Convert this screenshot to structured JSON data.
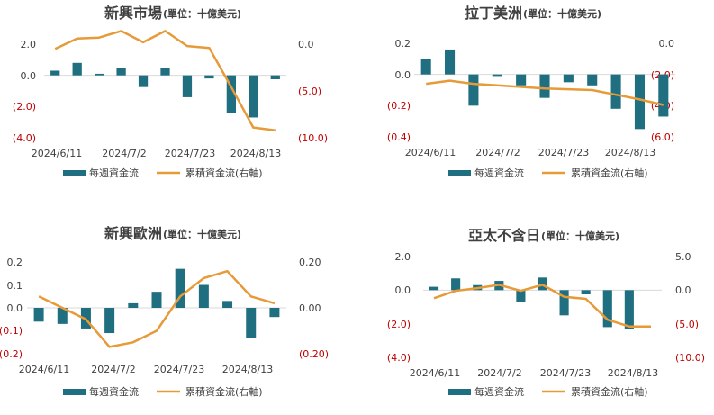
{
  "colors": {
    "bar": "#1f6f80",
    "line": "#e69a38",
    "negative": "#c00000",
    "text": "#404040",
    "grid": "#d9d9d9"
  },
  "legend": {
    "bar_label": "每週資金流",
    "line_label": "累積資金流(右軸)"
  },
  "chart_data": [
    {
      "type": "bar",
      "title": "新興市場",
      "subtitle": "(單位：十億美元)",
      "x_tick_labels": [
        "2024/6/11",
        "2024/7/2",
        "2024/7/23",
        "2024/8/13"
      ],
      "left_axis": {
        "ylim": [
          -4,
          2
        ],
        "tick_labels": [
          "2.0",
          "0.0",
          "(2.0)",
          "(4.0)"
        ]
      },
      "right_axis": {
        "ylim": [
          -10,
          0
        ],
        "tick_labels": [
          "0.0",
          "(5.0)",
          "(10.0)"
        ]
      },
      "series": [
        {
          "name": "每週資金流",
          "type": "bar",
          "axis": "left",
          "values": [
            0.3,
            0.8,
            0.1,
            0.45,
            -0.75,
            0.5,
            -1.4,
            -0.2,
            -2.4,
            -2.7,
            -0.25
          ]
        },
        {
          "name": "累積資金流(右軸)",
          "type": "line",
          "axis": "right",
          "values": [
            -0.5,
            0.6,
            0.7,
            1.4,
            0.2,
            1.4,
            -0.2,
            -0.4,
            -4.6,
            -8.9,
            -9.2
          ]
        }
      ]
    },
    {
      "type": "bar",
      "title": "拉丁美洲",
      "subtitle": "(單位：十億美元)",
      "x_tick_labels": [
        "2024/6/11",
        "2024/7/2",
        "2024/7/23",
        "2024/8/13"
      ],
      "left_axis": {
        "ylim": [
          -0.4,
          0.2
        ],
        "tick_labels": [
          "0.2",
          "0.0",
          "(0.2)",
          "(0.4)"
        ]
      },
      "right_axis": {
        "ylim": [
          -6,
          0
        ],
        "tick_labels": [
          "0.0",
          "(2.0)",
          "(4.0)",
          "(6.0)"
        ]
      },
      "series": [
        {
          "name": "每週資金流",
          "type": "bar",
          "axis": "left",
          "values": [
            0.1,
            0.16,
            -0.2,
            -0.01,
            -0.07,
            -0.15,
            -0.05,
            -0.07,
            -0.22,
            -0.35,
            -0.27
          ]
        },
        {
          "name": "累積資金流(右軸)",
          "type": "line",
          "axis": "right",
          "values": [
            -2.6,
            -2.4,
            -2.6,
            -2.7,
            -2.8,
            -2.9,
            -2.95,
            -3.0,
            -3.3,
            -3.6,
            -3.95
          ]
        }
      ]
    },
    {
      "type": "bar",
      "title": "新興歐洲",
      "subtitle": "(單位：十億美元)",
      "x_tick_labels": [
        "2024/6/11",
        "2024/7/2",
        "2024/7/23",
        "2024/8/13"
      ],
      "left_axis": {
        "ylim": [
          -0.2,
          0.2
        ],
        "tick_labels": [
          "0.2",
          "0.1",
          "0.0",
          "(0.1)",
          "(0.2)"
        ]
      },
      "right_axis": {
        "ylim": [
          -0.2,
          0.2
        ],
        "tick_labels": [
          "0.20",
          "0.00",
          "(0.20)"
        ]
      },
      "series": [
        {
          "name": "每週資金流",
          "type": "bar",
          "axis": "left",
          "values": [
            -0.06,
            -0.07,
            -0.09,
            -0.11,
            0.02,
            0.07,
            0.17,
            0.1,
            0.03,
            -0.13,
            -0.04
          ]
        },
        {
          "name": "累積資金流(右軸)",
          "type": "line",
          "axis": "right",
          "values": [
            0.05,
            0.0,
            -0.05,
            -0.17,
            -0.15,
            -0.1,
            0.05,
            0.13,
            0.16,
            0.05,
            0.02
          ]
        }
      ]
    },
    {
      "type": "bar",
      "title": "亞太不含日",
      "subtitle": "(單位：十億美元)",
      "x_tick_labels": [
        "2024/6/11",
        "2024/7/2",
        "2024/7/23",
        "2024/8/13"
      ],
      "left_axis": {
        "ylim": [
          -4,
          2
        ],
        "tick_labels": [
          "2.0",
          "0.0",
          "(2.0)",
          "(4.0)"
        ]
      },
      "right_axis": {
        "ylim": [
          -10,
          5
        ],
        "tick_labels": [
          "5.0",
          "0.0",
          "(5.0)",
          "(10.0)"
        ]
      },
      "series": [
        {
          "name": "每週資金流",
          "type": "bar",
          "axis": "left",
          "values": [
            0.2,
            0.7,
            0.3,
            0.55,
            -0.7,
            0.75,
            -1.5,
            -0.25,
            -2.2,
            -2.3,
            0.0
          ]
        },
        {
          "name": "累積資金流(右軸)",
          "type": "line",
          "axis": "right",
          "values": [
            -1.2,
            -0.1,
            0.3,
            0.8,
            -0.1,
            0.8,
            -1.0,
            -1.3,
            -4.4,
            -5.4,
            -5.4
          ]
        }
      ]
    }
  ]
}
